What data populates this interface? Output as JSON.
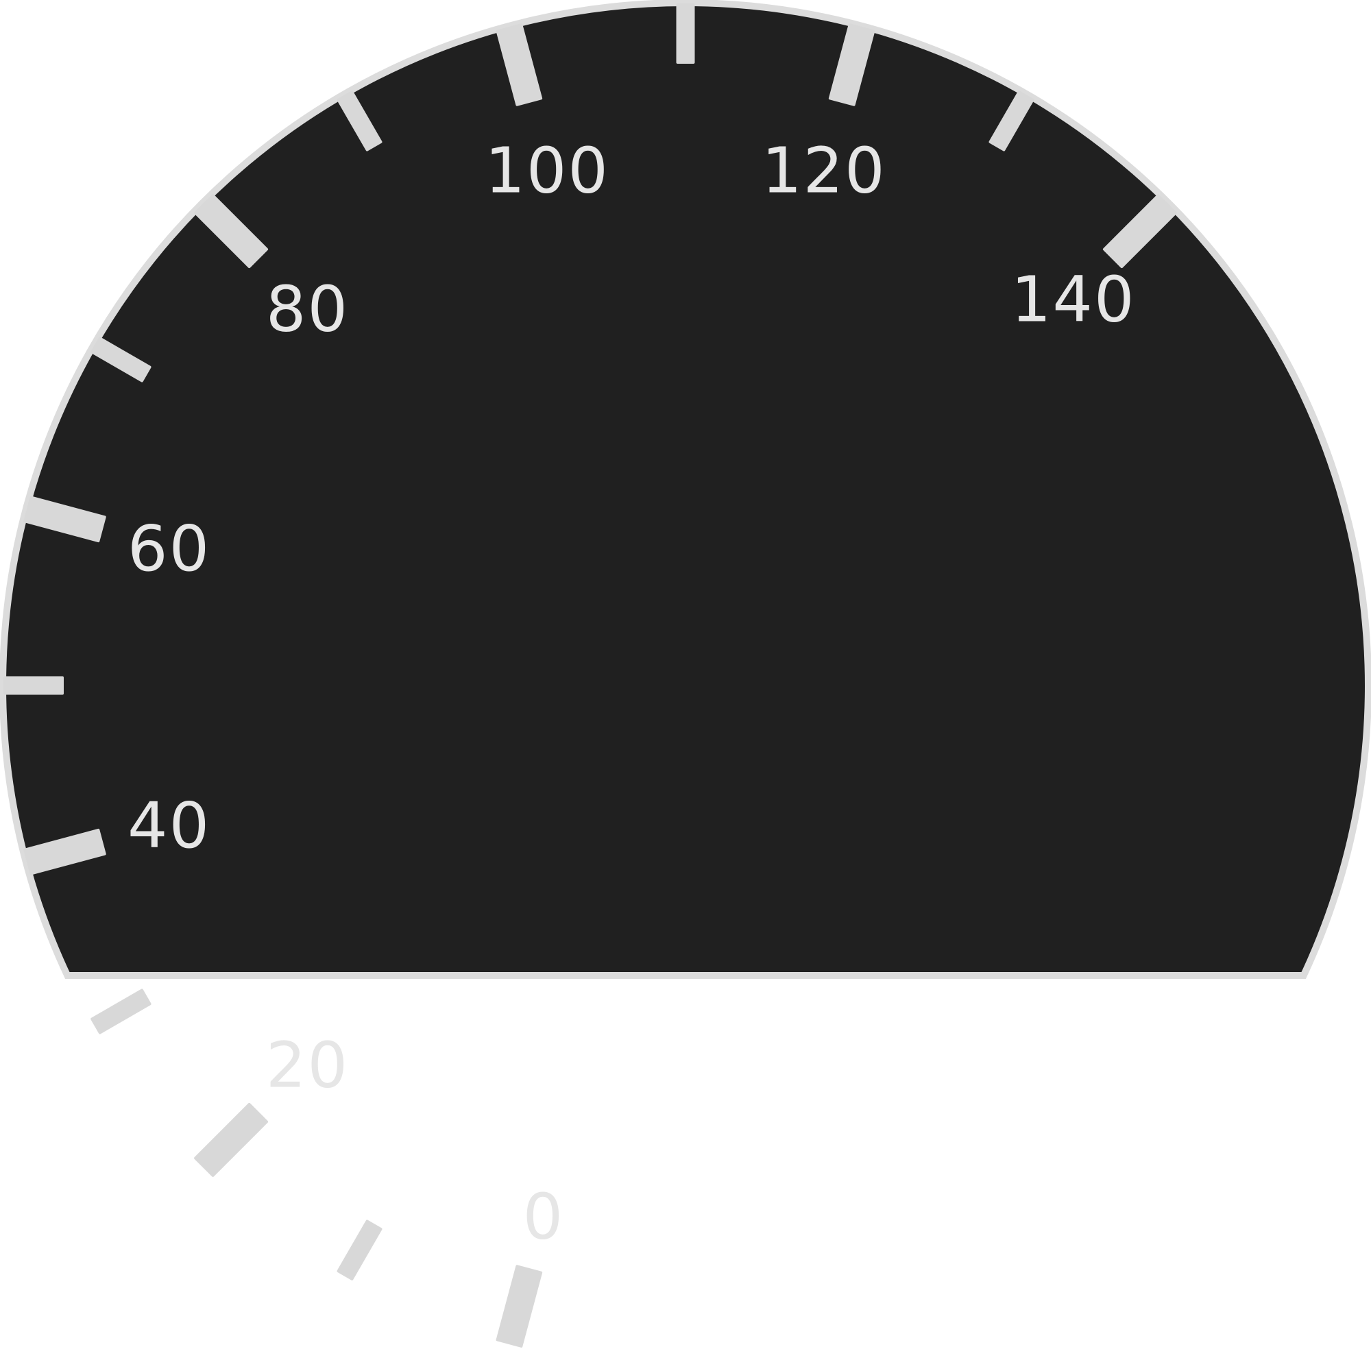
{
  "gauge": {
    "min": 0,
    "max": 140,
    "labels": [
      "0",
      "20",
      "40",
      "60",
      "80",
      "100",
      "120",
      "140"
    ],
    "major_tick_values": [
      0,
      20,
      40,
      60,
      80,
      100,
      120,
      140
    ],
    "minor_tick_values": [
      10,
      30,
      50,
      70,
      90,
      110,
      130
    ],
    "colors": {
      "face": "#202020",
      "rim": "#dcdcdc",
      "ticks": "#d8d8d8",
      "labels": "#e6e6e6",
      "background": "#ffffff"
    }
  }
}
